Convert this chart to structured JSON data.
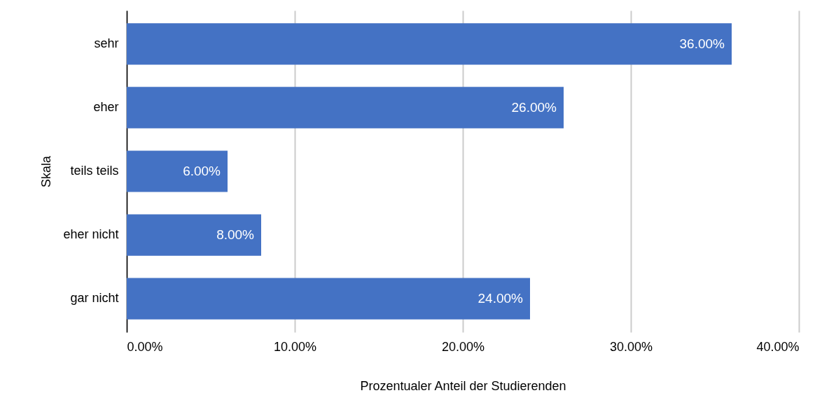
{
  "chart_data": {
    "type": "bar",
    "orientation": "horizontal",
    "xlabel": "Prozentualer Anteil der Studierenden",
    "ylabel": "Skala",
    "categories": [
      "sehr",
      "eher",
      "teils teils",
      "eher nicht",
      "gar nicht"
    ],
    "values": [
      36,
      26,
      6,
      8,
      24
    ],
    "value_labels": [
      "36.00%",
      "26.00%",
      "6.00%",
      "8.00%",
      "24.00%"
    ],
    "color": "#4472c4",
    "xlim": [
      0,
      40
    ],
    "xticks": [
      {
        "value": 0,
        "label": "0.00%"
      },
      {
        "value": 10,
        "label": "10.00%"
      },
      {
        "value": 20,
        "label": "20.00%"
      },
      {
        "value": 30,
        "label": "30.00%"
      },
      {
        "value": 40,
        "label": "40.00%"
      }
    ],
    "grid": "x"
  }
}
